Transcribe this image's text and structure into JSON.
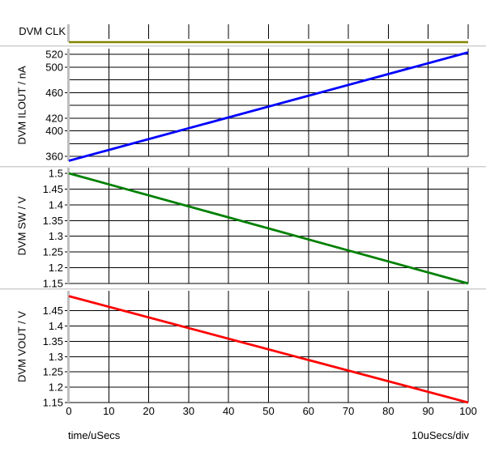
{
  "axes": {
    "x": {
      "label": "time/uSecs",
      "scale_note": "10uSecs/div",
      "lim": [
        0,
        100
      ],
      "values": [
        0,
        10,
        20,
        30,
        40,
        50,
        60,
        70,
        80,
        90,
        100
      ],
      "ticks": [
        "0",
        "10",
        "20",
        "30",
        "40",
        "50",
        "60",
        "70",
        "80",
        "90",
        "100"
      ]
    },
    "grid_color": "#000000",
    "axis_bar_color": "#bfbfbf",
    "divider_color": "#cfcfcf"
  },
  "chart_data": [
    {
      "id": "clk",
      "type": "line",
      "name": "DVM CLK",
      "color": "#848400",
      "x": [
        0,
        100
      ],
      "y": [
        0,
        0
      ],
      "ylim": [
        0,
        8
      ],
      "yticks": [],
      "ytick_labels": [],
      "note": "flat clock trace at low level along panel bottom"
    },
    {
      "id": "ilout",
      "type": "line",
      "name": "DVM ILOUT / nA",
      "color": "#0000ff",
      "x": [
        0,
        100
      ],
      "y": [
        353,
        523
      ],
      "ylim": [
        352.4,
        528.9
      ],
      "yticks": [
        360,
        380,
        400,
        420,
        440,
        460,
        480,
        500,
        520
      ],
      "ytick_labels": [
        "360",
        "",
        "400",
        "420",
        "",
        "460",
        "",
        "500",
        "520"
      ]
    },
    {
      "id": "sw",
      "type": "line",
      "name": "DVM SW / V",
      "color": "#008000",
      "x": [
        0,
        100
      ],
      "y": [
        1.5,
        1.15
      ],
      "ylim": [
        1.15,
        1.518
      ],
      "yticks": [
        1.15,
        1.2,
        1.25,
        1.3,
        1.35,
        1.4,
        1.45,
        1.5
      ],
      "ytick_labels": [
        "1.15",
        "1.2",
        "1.25",
        "1.3",
        "1.35",
        "1.4",
        "1.45",
        "1.5"
      ]
    },
    {
      "id": "vout",
      "type": "line",
      "name": "DVM VOUT / V",
      "color": "#ff0000",
      "x": [
        0,
        100
      ],
      "y": [
        1.4975,
        1.15
      ],
      "ylim": [
        1.15,
        1.515
      ],
      "yticks": [
        1.15,
        1.2,
        1.25,
        1.3,
        1.35,
        1.4,
        1.45
      ],
      "ytick_labels": [
        "1.15",
        "1.2",
        "1.25",
        "1.3",
        "1.35",
        "1.4",
        "1.45"
      ]
    }
  ]
}
